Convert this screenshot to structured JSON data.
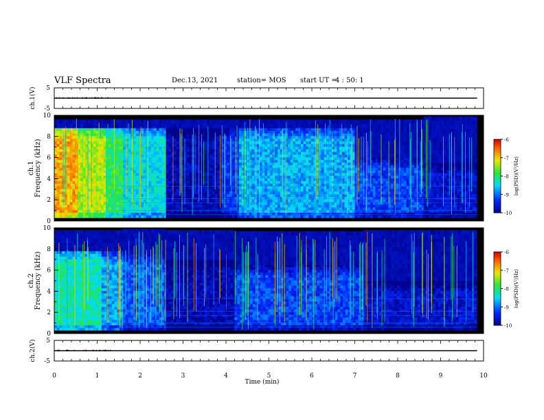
{
  "header": {
    "title": "VLF Spectra",
    "date": "Dec.13, 2021",
    "station": "station= MOS",
    "start_ut_label": "start UT =",
    "start_ut_value": "4 : 50: 1"
  },
  "chart_data": [
    {
      "type": "line",
      "panel": "ch1-waveform",
      "ylabel": "ch.1(V)",
      "ylim": [
        -5,
        5
      ],
      "yticks": [
        "5",
        "-5"
      ],
      "series": [
        {
          "x": [
            0,
            9.85
          ],
          "y": [
            0,
            0
          ]
        }
      ]
    },
    {
      "type": "heatmap",
      "panel": "ch1-spectrogram",
      "ylabel": "ch.1\nFrequency (kHz)",
      "ylim": [
        0,
        10
      ],
      "yticks": [
        "0",
        "2",
        "4",
        "6",
        "8",
        "10"
      ],
      "xlim": [
        0,
        10
      ],
      "segments": [
        {
          "t0": 0.0,
          "t1": 0.55,
          "level": -6.8,
          "fmax": 8.8
        },
        {
          "t0": 0.55,
          "t1": 1.2,
          "level": -7.3,
          "fmax": 8.8
        },
        {
          "t0": 1.2,
          "t1": 1.6,
          "level": -7.9,
          "fmax": 8.8
        },
        {
          "t0": 1.6,
          "t1": 2.6,
          "level": -8.4,
          "fmax": 8.8
        },
        {
          "t0": 2.6,
          "t1": 3.9,
          "level": -9.8,
          "fmax": 8.8
        },
        {
          "t0": 3.9,
          "t1": 4.3,
          "level": -9.3,
          "fmax": 8.8
        },
        {
          "t0": 4.3,
          "t1": 7.0,
          "level": -8.7,
          "fmax": 8.8
        },
        {
          "t0": 7.0,
          "t1": 8.6,
          "level": -9.2,
          "fmax": 6.0
        },
        {
          "t0": 8.6,
          "t1": 9.85,
          "level": -9.6,
          "fmax": 5.5
        }
      ],
      "colorbar": {
        "label": "log(PSD)(V²/Hz)",
        "range": [
          -10,
          -6
        ],
        "ticks": [
          "-6",
          "-7",
          "-8",
          "-9",
          "-10"
        ]
      }
    },
    {
      "type": "heatmap",
      "panel": "ch2-spectrogram",
      "ylabel": "ch.2\nFrequency (kHz)",
      "ylim": [
        0,
        10
      ],
      "yticks": [
        "0",
        "2",
        "4",
        "6",
        "8",
        "10"
      ],
      "xlim": [
        0,
        10
      ],
      "segments": [
        {
          "t0": 0.0,
          "t1": 1.1,
          "level": -8.2,
          "fmax": 7.8
        },
        {
          "t0": 1.1,
          "t1": 1.6,
          "level": -8.7,
          "fmax": 7.8
        },
        {
          "t0": 1.6,
          "t1": 2.6,
          "level": -9.1,
          "fmax": 7.5
        },
        {
          "t0": 2.6,
          "t1": 4.2,
          "level": -9.8,
          "fmax": 7.0
        },
        {
          "t0": 4.2,
          "t1": 7.2,
          "level": -9.2,
          "fmax": 6.5
        },
        {
          "t0": 7.2,
          "t1": 9.85,
          "level": -9.6,
          "fmax": 5.0
        }
      ],
      "colorbar": {
        "label": "log(PSD)(V²/Hz)",
        "range": [
          -10,
          -6
        ],
        "ticks": [
          "-6",
          "-7",
          "-8",
          "-9",
          "-10"
        ]
      }
    },
    {
      "type": "line",
      "panel": "ch2-waveform",
      "ylabel": "ch.2(V)",
      "ylim": [
        -5,
        5
      ],
      "yticks": [
        "5",
        "-5"
      ],
      "series": [
        {
          "x": [
            0,
            9.85
          ],
          "y": [
            0,
            0
          ]
        }
      ]
    }
  ],
  "xaxis": {
    "label": "Time (min)",
    "ticks": [
      "0",
      "1",
      "2",
      "3",
      "4",
      "5",
      "6",
      "7",
      "8",
      "9",
      "10"
    ]
  },
  "colors": {
    "spectrogram_background": "#000000",
    "axis": "#000000"
  }
}
